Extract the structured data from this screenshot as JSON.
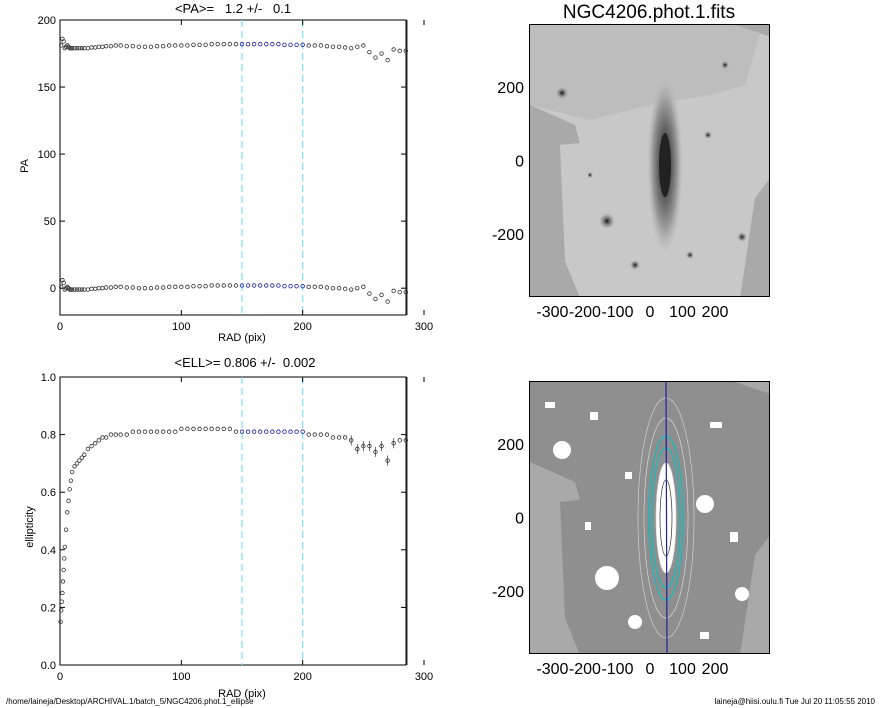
{
  "footer": {
    "path": "/home/laineja/Desktop/ARCHIVAL.1/batch_5/NGC4206.phot.1_ellipse",
    "user_time": "laineja@hiisi.oulu.fi  Tue Jul 20 11:05:55 2010"
  },
  "image_title": "NGC4206.phot.1.fits",
  "colors": {
    "axis": "#000000",
    "marker": "#333333",
    "fit": "#2020a0",
    "guide": "#7fe0ee",
    "contour": "#2ab3b3",
    "sky": "#9c9c9c"
  },
  "chart_data": [
    {
      "type": "scatter",
      "title": "<PA>=   1.2 +/-   0.1",
      "xlabel": "RAD (pix)",
      "ylabel": "PA",
      "xlim": [
        0,
        300
      ],
      "ylim": [
        -20,
        200
      ],
      "xticks": [
        0,
        100,
        200,
        300
      ],
      "yticks": [
        0,
        50,
        100,
        150,
        200
      ],
      "guides_x": [
        150,
        200
      ],
      "edge_x": 286,
      "fit_range": [
        150,
        200
      ],
      "series": [
        {
          "x": [
            1,
            2,
            3,
            4,
            5,
            6,
            7,
            8,
            9,
            10,
            12,
            14,
            16,
            18,
            20,
            23,
            26,
            29,
            32,
            35,
            38,
            42,
            46,
            50,
            55,
            60,
            65,
            70,
            75,
            80,
            85,
            90,
            95,
            100,
            105,
            110,
            115,
            120,
            125,
            130,
            135,
            140,
            145,
            150,
            155,
            160,
            165,
            170,
            175,
            180,
            185,
            190,
            195,
            200,
            205,
            210,
            215,
            220,
            225,
            230,
            235,
            240,
            245,
            250,
            255,
            260,
            265,
            270,
            275,
            280,
            285
          ],
          "y": [
            181,
            186,
            184,
            179,
            180,
            181,
            180,
            179,
            179,
            179,
            179,
            179,
            179,
            179,
            179,
            179,
            179.5,
            179.5,
            180,
            180,
            180.5,
            180.5,
            181,
            181,
            180.5,
            180.5,
            180,
            180,
            180,
            180.5,
            180.5,
            181,
            181,
            181,
            181,
            181.5,
            181.5,
            181.5,
            182,
            182,
            182,
            182,
            182,
            182,
            182,
            182,
            182,
            182,
            182,
            182,
            181.5,
            181.5,
            181.5,
            181.5,
            181,
            181,
            181,
            180.5,
            180,
            180,
            179.5,
            179,
            180,
            181,
            176,
            172,
            175,
            170,
            178,
            177,
            177
          ]
        },
        {
          "x": [
            1,
            2,
            3,
            4,
            5,
            6,
            7,
            8,
            9,
            10,
            12,
            14,
            16,
            18,
            20,
            23,
            26,
            29,
            32,
            35,
            38,
            42,
            46,
            50,
            55,
            60,
            65,
            70,
            75,
            80,
            85,
            90,
            95,
            100,
            105,
            110,
            115,
            120,
            125,
            130,
            135,
            140,
            145,
            150,
            155,
            160,
            165,
            170,
            175,
            180,
            185,
            190,
            195,
            200,
            205,
            210,
            215,
            220,
            225,
            230,
            235,
            240,
            245,
            250,
            255,
            260,
            265,
            270,
            275,
            280,
            285
          ],
          "y": [
            1,
            6,
            4,
            -1,
            0,
            1,
            0,
            -1,
            -1,
            -1,
            -1,
            -1,
            -1,
            -1,
            -1,
            -1,
            -0.5,
            -0.5,
            0,
            0,
            0.5,
            0.5,
            1,
            1,
            0.5,
            0.5,
            0,
            0,
            0,
            0.5,
            0.5,
            1,
            1,
            1,
            1,
            1.5,
            1.5,
            1.5,
            2,
            2,
            2,
            2,
            2,
            2,
            2,
            2,
            2,
            2,
            2,
            2,
            1.5,
            1.5,
            1.5,
            1.5,
            1,
            1,
            1,
            0.5,
            0,
            0,
            -0.5,
            -1,
            0,
            1,
            -4,
            -8,
            -5,
            -10,
            -2,
            -3,
            -3
          ]
        }
      ]
    },
    {
      "type": "scatter",
      "title": "<ELL>= 0.806 +/-  0.002",
      "xlabel": "RAD (pix)",
      "ylabel": "ellipticity",
      "xlim": [
        0,
        300
      ],
      "ylim": [
        0,
        1
      ],
      "xticks": [
        0,
        100,
        200,
        300
      ],
      "yticks": [
        0.0,
        0.2,
        0.4,
        0.6,
        0.8,
        1.0
      ],
      "guides_x": [
        150,
        200
      ],
      "edge_x": 286,
      "fit_range": [
        150,
        200
      ],
      "series": [
        {
          "x": [
            0.5,
            1,
            1.5,
            2,
            2.5,
            3,
            3.5,
            4,
            5,
            6,
            7,
            8,
            9,
            10,
            12,
            14,
            16,
            18,
            20,
            23,
            26,
            29,
            32,
            35,
            38,
            42,
            46,
            50,
            55,
            60,
            65,
            70,
            75,
            80,
            85,
            90,
            95,
            100,
            105,
            110,
            115,
            120,
            125,
            130,
            135,
            140,
            145,
            150,
            155,
            160,
            165,
            170,
            175,
            180,
            185,
            190,
            195,
            200,
            205,
            210,
            215,
            220,
            225,
            230,
            235,
            240,
            245,
            250,
            255,
            260,
            265,
            270,
            275,
            280,
            285
          ],
          "y": [
            0.15,
            0.19,
            0.22,
            0.25,
            0.29,
            0.33,
            0.37,
            0.41,
            0.47,
            0.53,
            0.57,
            0.61,
            0.64,
            0.67,
            0.69,
            0.7,
            0.71,
            0.72,
            0.73,
            0.75,
            0.76,
            0.77,
            0.78,
            0.79,
            0.79,
            0.8,
            0.8,
            0.8,
            0.8,
            0.81,
            0.81,
            0.81,
            0.81,
            0.81,
            0.81,
            0.81,
            0.81,
            0.82,
            0.82,
            0.82,
            0.82,
            0.82,
            0.82,
            0.82,
            0.82,
            0.82,
            0.81,
            0.81,
            0.81,
            0.81,
            0.81,
            0.81,
            0.81,
            0.81,
            0.81,
            0.81,
            0.81,
            0.81,
            0.8,
            0.8,
            0.8,
            0.8,
            0.79,
            0.79,
            0.79,
            0.78,
            0.75,
            0.76,
            0.76,
            0.74,
            0.76,
            0.71,
            0.77,
            0.78,
            0.78
          ]
        }
      ]
    }
  ]
}
